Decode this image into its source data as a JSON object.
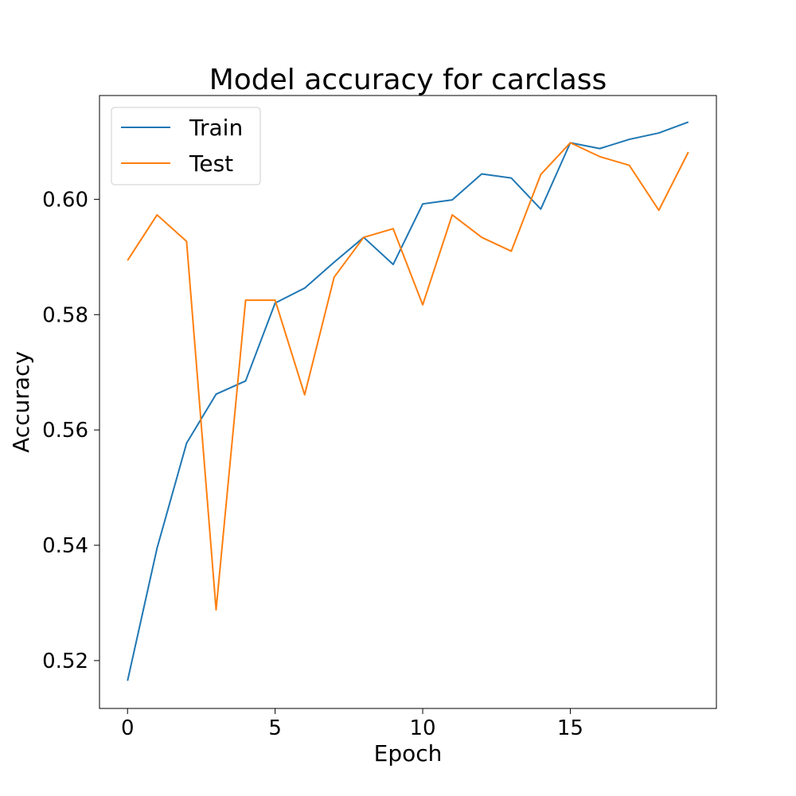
{
  "chart_data": {
    "type": "line",
    "title": "Model accuracy for carclass",
    "xlabel": "Epoch",
    "ylabel": "Accuracy",
    "x": [
      0,
      1,
      2,
      3,
      4,
      5,
      6,
      7,
      8,
      9,
      10,
      11,
      12,
      13,
      14,
      15,
      16,
      17,
      18,
      19
    ],
    "series": [
      {
        "name": "Train",
        "color": "#1f77b4",
        "values": [
          0.5165,
          0.5395,
          0.5577,
          0.5662,
          0.5685,
          0.582,
          0.5846,
          0.5891,
          0.5934,
          0.5887,
          0.5992,
          0.5999,
          0.6044,
          0.6037,
          0.5983,
          0.6098,
          0.6088,
          0.6104,
          0.6115,
          0.6134
        ]
      },
      {
        "name": "Test",
        "color": "#ff7f0e",
        "values": [
          0.5894,
          0.5973,
          0.5927,
          0.5288,
          0.5825,
          0.5825,
          0.5661,
          0.5865,
          0.5934,
          0.5949,
          0.5817,
          0.5973,
          0.5934,
          0.591,
          0.6043,
          0.6098,
          0.6074,
          0.6059,
          0.5981,
          0.6082
        ]
      }
    ],
    "xlim": [
      -0.95,
      19.95
    ],
    "ylim": [
      0.5117,
      0.618
    ],
    "xticks": [
      0,
      5,
      10,
      15
    ],
    "xtick_labels": [
      "0",
      "5",
      "10",
      "15"
    ],
    "yticks": [
      0.52,
      0.54,
      0.56,
      0.58,
      0.6
    ],
    "ytick_labels": [
      "0.52",
      "0.54",
      "0.56",
      "0.58",
      "0.60"
    ],
    "grid": false,
    "legend_position": "upper-left"
  }
}
